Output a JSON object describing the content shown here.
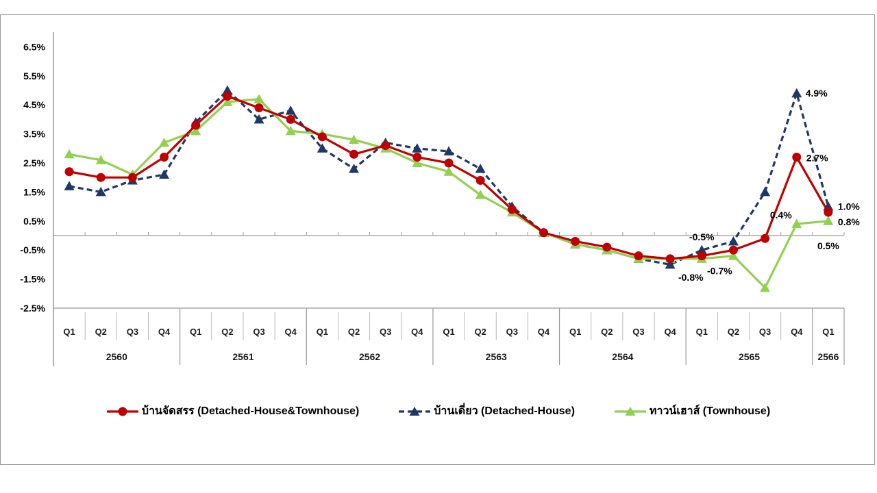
{
  "chart_data": {
    "type": "line",
    "unit": "%",
    "grid": "zero-line-only",
    "legend_position": "bottom",
    "axis_color": "#999999",
    "separator_color": "#b8b8b8",
    "text_color": "#000000",
    "x_axis": {
      "years": [
        {
          "label": "2560",
          "quarters": [
            "Q1",
            "Q2",
            "Q3",
            "Q4"
          ]
        },
        {
          "label": "2561",
          "quarters": [
            "Q1",
            "Q2",
            "Q3",
            "Q4"
          ]
        },
        {
          "label": "2562",
          "quarters": [
            "Q1",
            "Q2",
            "Q3",
            "Q4"
          ]
        },
        {
          "label": "2563",
          "quarters": [
            "Q1",
            "Q2",
            "Q3",
            "Q4"
          ]
        },
        {
          "label": "2564",
          "quarters": [
            "Q1",
            "Q2",
            "Q3",
            "Q4"
          ]
        },
        {
          "label": "2565",
          "quarters": [
            "Q1",
            "Q2",
            "Q3",
            "Q4"
          ]
        },
        {
          "label": "2566",
          "quarters": [
            "Q1"
          ]
        }
      ]
    },
    "y_axis": {
      "min": -2.5,
      "max": 6.5,
      "step": 1,
      "ticks": [
        {
          "value": 6.5,
          "label": "6.5%"
        },
        {
          "value": 5.5,
          "label": "5.5%"
        },
        {
          "value": 4.5,
          "label": "4.5%"
        },
        {
          "value": 3.5,
          "label": "3.5%"
        },
        {
          "value": 2.5,
          "label": "2.5%"
        },
        {
          "value": 1.5,
          "label": "1.5%"
        },
        {
          "value": 0.5,
          "label": "0.5%"
        },
        {
          "value": -0.5,
          "label": "-0.5%"
        },
        {
          "value": -1.5,
          "label": "-1.5%"
        },
        {
          "value": -2.5,
          "label": "-2.5%"
        }
      ]
    },
    "series": [
      {
        "id": "combined",
        "label": "บ้านจัดสรร (Detached-House&Townhouse)",
        "color": "#C00000",
        "line_style": "solid",
        "marker": "circle",
        "values": [
          2.2,
          2.0,
          2.0,
          2.7,
          3.8,
          4.8,
          4.4,
          4.0,
          3.4,
          2.8,
          3.1,
          2.7,
          2.5,
          1.9,
          0.9,
          0.1,
          -0.2,
          -0.4,
          -0.7,
          -0.8,
          -0.7,
          -0.5,
          -0.1,
          2.7,
          0.8
        ]
      },
      {
        "id": "detached",
        "label": "บ้านเดี่ยว (Detached-House)",
        "color": "#1F3864",
        "line_style": "dashed",
        "marker": "triangle",
        "values": [
          1.7,
          1.5,
          1.9,
          2.1,
          3.9,
          5.0,
          4.0,
          4.3,
          3.0,
          2.3,
          3.2,
          3.0,
          2.9,
          2.3,
          1.0,
          0.1,
          -0.3,
          -0.5,
          -0.8,
          -1.0,
          -0.5,
          -0.2,
          1.5,
          4.9,
          1.0
        ]
      },
      {
        "id": "townhouse",
        "label": "ทาวน์เฮาส์ (Townhouse)",
        "color": "#92D050",
        "line_style": "solid",
        "marker": "triangle",
        "values": [
          2.8,
          2.6,
          2.1,
          3.2,
          3.6,
          4.6,
          4.7,
          3.6,
          3.5,
          3.3,
          3.0,
          2.5,
          2.2,
          1.4,
          0.8,
          0.1,
          -0.3,
          -0.5,
          -0.8,
          -0.8,
          -0.8,
          -0.7,
          -1.8,
          0.4,
          0.5
        ]
      }
    ],
    "point_labels": [
      {
        "series": "detached",
        "index": 20,
        "text": "-0.5%",
        "color": "#000000"
      },
      {
        "series": "combined",
        "index": 20,
        "text": "-0.7%"
      },
      {
        "series": "townhouse",
        "index": 20,
        "text": "-0.8%"
      },
      {
        "series": "townhouse",
        "index": 23,
        "text": "0.4%"
      },
      {
        "series": "combined",
        "index": 23,
        "text": "2.7%"
      },
      {
        "series": "detached",
        "index": 23,
        "text": "4.9%"
      },
      {
        "series": "detached",
        "index": 24,
        "text": "1.0%"
      },
      {
        "series": "combined",
        "index": 24,
        "text": "0.8%"
      },
      {
        "series": "townhouse",
        "index": 24,
        "text": "0.5%"
      }
    ]
  }
}
